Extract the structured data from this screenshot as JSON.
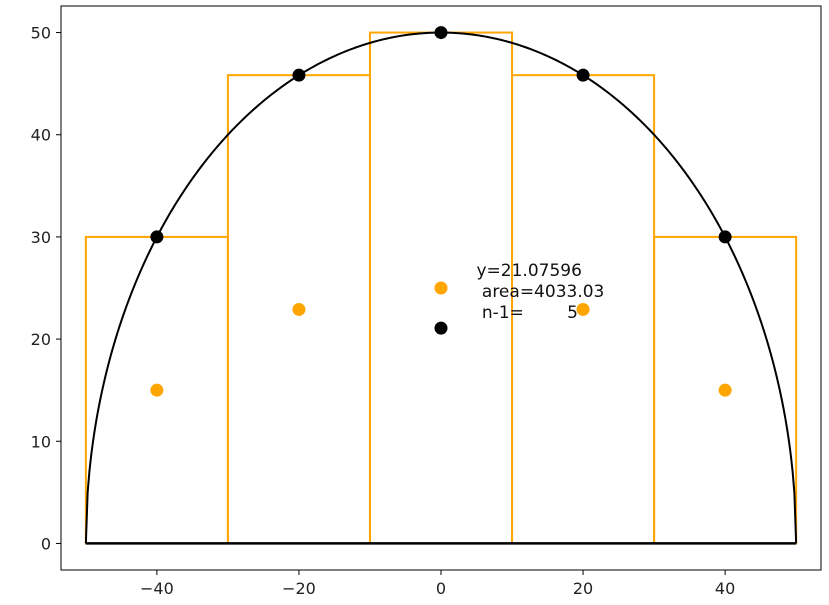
{
  "chart_data": {
    "type": "scatter",
    "title": "",
    "xlabel": "",
    "ylabel": "",
    "xlim": [
      -53.5,
      53.5
    ],
    "ylim": [
      -2.6,
      52.6
    ],
    "x_ticks": [
      -40,
      -20,
      0,
      20,
      40
    ],
    "y_ticks": [
      0,
      10,
      20,
      30,
      40,
      50
    ],
    "x_tick_labels": [
      "−40",
      "−20",
      "0",
      "20",
      "40"
    ],
    "y_tick_labels": [
      "0",
      "10",
      "20",
      "30",
      "40",
      "50"
    ],
    "grid": false,
    "colors": {
      "curve": "#000000",
      "rectangles": "#ffa500",
      "sample_points": "#000000",
      "midpoints": "#ffa500",
      "axes": "#000000"
    },
    "series": [
      {
        "kind": "curve",
        "function": "semi-ellipse",
        "center": 0,
        "half_width": 50,
        "height": 50
      },
      {
        "kind": "rectangles",
        "bars": [
          {
            "x0": -50,
            "x1": -30,
            "height": 30
          },
          {
            "x0": -30,
            "x1": -10,
            "height": 45.83
          },
          {
            "x0": -10,
            "x1": 10,
            "height": 50
          },
          {
            "x0": 10,
            "x1": 30,
            "height": 45.83
          },
          {
            "x0": 30,
            "x1": 50,
            "height": 30
          }
        ]
      },
      {
        "kind": "sample_points",
        "points": [
          {
            "x": -40,
            "y": 30
          },
          {
            "x": -20,
            "y": 45.83
          },
          {
            "x": 0,
            "y": 50
          },
          {
            "x": 20,
            "y": 45.83
          },
          {
            "x": 40,
            "y": 30
          }
        ]
      },
      {
        "kind": "midpoints",
        "points": [
          {
            "x": -40,
            "y": 15
          },
          {
            "x": -20,
            "y": 22.9
          },
          {
            "x": 0,
            "y": 25
          },
          {
            "x": 20,
            "y": 22.9
          },
          {
            "x": 40,
            "y": 15
          }
        ]
      },
      {
        "kind": "marker",
        "points": [
          {
            "x": 0,
            "y": 21.07596
          }
        ]
      }
    ],
    "baseline": {
      "x0": -50,
      "x1": 50,
      "y": 0
    },
    "annotation": {
      "x": 5,
      "lines": [
        "y=21.07596",
        " area=4033.03",
        " n-1=        5"
      ]
    }
  }
}
